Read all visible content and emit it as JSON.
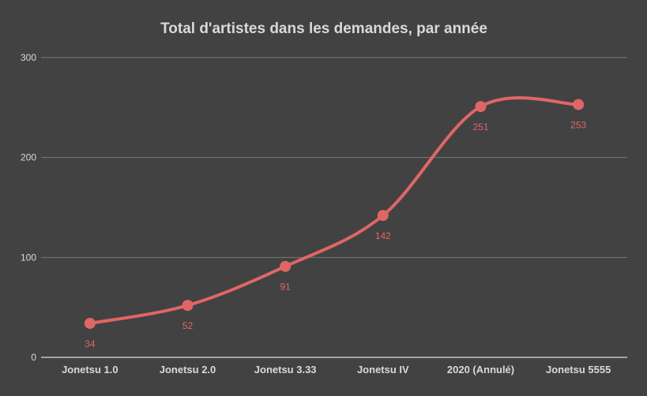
{
  "chart_data": {
    "type": "line",
    "title": "Total d'artistes dans les demandes, par année",
    "categories": [
      "Jonetsu 1.0",
      "Jonetsu 2.0",
      "Jonetsu 3.33",
      "Jonetsu IV",
      "2020 (Annulé)",
      "Jonetsu 5555"
    ],
    "series": [
      {
        "values": [
          34,
          52,
          91,
          142,
          251,
          253
        ],
        "color": "#e06666"
      }
    ],
    "data_labels": [
      "34",
      "52",
      "91",
      "142",
      "251",
      "253"
    ],
    "yticks": [
      "0",
      "100",
      "200",
      "300"
    ],
    "ylim": [
      0,
      300
    ],
    "grid": true,
    "legend": "none",
    "smooth": true
  },
  "colors": {
    "background": "#424242",
    "text": "#d9d9d9",
    "line": "#e06666",
    "grid": "#7a7a7a"
  }
}
